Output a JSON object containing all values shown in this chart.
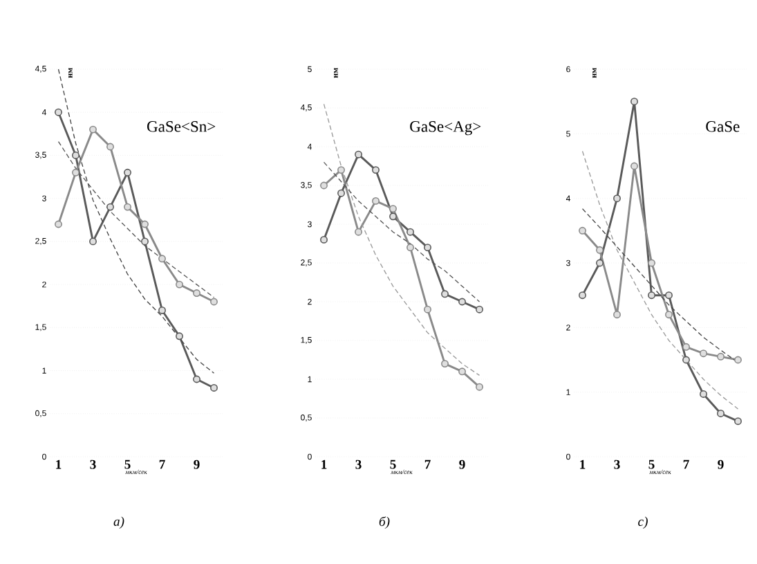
{
  "chart_data": [
    {
      "type": "line",
      "title": "GaSe<Sn>",
      "ylabel": "нм",
      "xlabel": "мкм/сек",
      "annotations": [
        "а)"
      ],
      "grid": "y",
      "marker": "circle",
      "categories": [
        "1",
        null,
        "3",
        null,
        "5",
        null,
        "7",
        null,
        "9",
        null
      ],
      "ylim": [
        0,
        4.5
      ],
      "yticks": [
        0,
        {
          "value": 0.5,
          "label": "0,5"
        },
        1,
        {
          "value": 1.5,
          "label": "1,5"
        },
        2,
        {
          "value": 2.5,
          "label": "2,5"
        },
        3,
        {
          "value": 3.5,
          "label": "3,5"
        },
        4,
        {
          "value": 4.5,
          "label": "4,5"
        }
      ],
      "series": [
        {
          "color": "#5a5a5a",
          "values": [
            4.0,
            3.5,
            2.5,
            2.9,
            3.3,
            2.5,
            1.7,
            1.4,
            0.9,
            0.8
          ]
        },
        {
          "color": "#8a8a8a",
          "values": [
            2.7,
            3.3,
            3.8,
            3.6,
            2.9,
            2.7,
            2.3,
            2.0,
            1.9,
            1.8
          ]
        },
        {
          "color": "#444444",
          "line_style": "dashed",
          "marker": "none",
          "values": [
            4.5,
            3.64,
            2.98,
            2.53,
            2.12,
            1.83,
            1.63,
            1.38,
            1.13,
            0.97
          ]
        },
        {
          "color": "#555555",
          "line_style": "dashed",
          "marker": "none",
          "values": [
            3.66,
            3.35,
            3.1,
            2.85,
            2.65,
            2.45,
            2.3,
            2.15,
            2.0,
            1.85
          ]
        }
      ]
    },
    {
      "type": "line",
      "title": "GaSe<Ag>",
      "ylabel": "нм",
      "xlabel": "мкм/сек",
      "annotations": [
        "б)"
      ],
      "grid": "y",
      "marker": "circle",
      "categories": [
        "1",
        null,
        "3",
        null,
        "5",
        null,
        "7",
        null,
        "9",
        null
      ],
      "ylim": [
        0,
        5
      ],
      "yticks": [
        0,
        {
          "value": 0.5,
          "label": "0,5"
        },
        1,
        {
          "value": 1.5,
          "label": "1,5"
        },
        2,
        {
          "value": 2.5,
          "label": "2,5"
        },
        3,
        {
          "value": 3.5,
          "label": "3,5"
        },
        4,
        {
          "value": 4.5,
          "label": "4,5"
        },
        5
      ],
      "series": [
        {
          "color": "#5a5a5a",
          "values": [
            2.8,
            3.4,
            3.9,
            3.7,
            3.1,
            2.9,
            2.7,
            2.1,
            2.0,
            1.9
          ]
        },
        {
          "color": "#8a8a8a",
          "values": [
            3.5,
            3.7,
            2.9,
            3.3,
            3.2,
            2.7,
            1.9,
            1.2,
            1.1,
            0.9
          ]
        },
        {
          "color": "#999999",
          "line_style": "dashed",
          "marker": "none",
          "values": [
            4.55,
            3.75,
            3.1,
            2.6,
            2.2,
            1.9,
            1.6,
            1.4,
            1.2,
            1.05
          ]
        },
        {
          "color": "#555555",
          "line_style": "dashed",
          "marker": "none",
          "values": [
            3.8,
            3.55,
            3.3,
            3.1,
            2.9,
            2.75,
            2.55,
            2.4,
            2.2,
            2.0
          ]
        }
      ]
    },
    {
      "type": "line",
      "title": "GaSe",
      "ylabel": "нм",
      "xlabel": "мкм/сек",
      "annotations": [
        "c)"
      ],
      "grid": "y",
      "marker": "circle",
      "categories": [
        "1",
        null,
        "3",
        null,
        "5",
        null,
        "7",
        null,
        "9",
        null
      ],
      "ylim": [
        0,
        6
      ],
      "yticks": [
        0,
        1,
        2,
        3,
        4,
        5,
        6
      ],
      "series": [
        {
          "color": "#5a5a5a",
          "values": [
            2.5,
            3.0,
            4.0,
            5.5,
            2.5,
            2.5,
            1.5,
            0.97,
            0.67,
            0.55
          ]
        },
        {
          "color": "#8a8a8a",
          "values": [
            3.5,
            3.2,
            2.2,
            4.5,
            3.0,
            2.2,
            1.7,
            1.6,
            1.55,
            1.5
          ]
        },
        {
          "color": "#999999",
          "line_style": "dashed",
          "marker": "none",
          "values": [
            4.73,
            3.9,
            3.2,
            2.7,
            2.2,
            1.8,
            1.5,
            1.2,
            0.95,
            0.74
          ]
        },
        {
          "color": "#444444",
          "line_style": "dashed",
          "marker": "none",
          "values": [
            3.84,
            3.55,
            3.25,
            2.95,
            2.65,
            2.35,
            2.1,
            1.85,
            1.65,
            1.46
          ]
        }
      ]
    }
  ]
}
